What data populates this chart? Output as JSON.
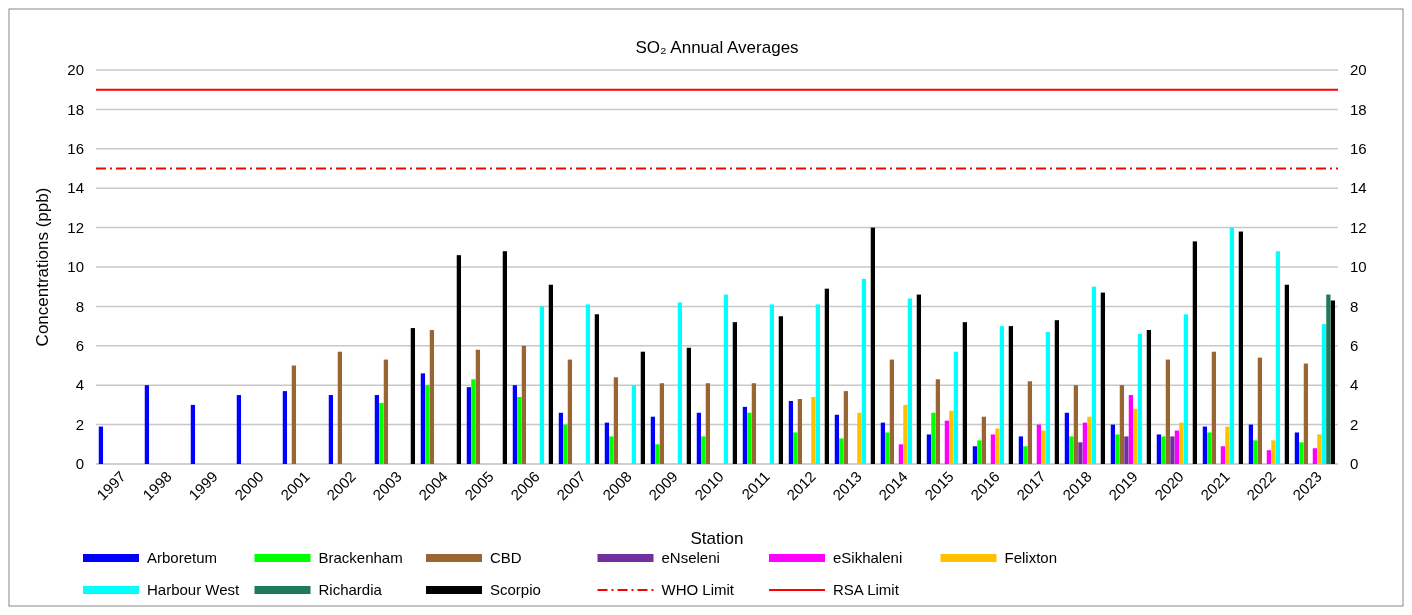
{
  "chart_data": {
    "type": "bar",
    "title": "SO₂ Annual Averages",
    "xlabel": "Station",
    "ylabel": "Concentrations (ppb)",
    "categories": [
      "1997",
      "1998",
      "1999",
      "2000",
      "2001",
      "2002",
      "2003",
      "2004",
      "2005",
      "2006",
      "2007",
      "2008",
      "2009",
      "2010",
      "2011",
      "2012",
      "2013",
      "2014",
      "2015",
      "2016",
      "2017",
      "2018",
      "2019",
      "2020",
      "2021",
      "2022",
      "2023"
    ],
    "series": [
      {
        "name": "Arboretum",
        "color": "#0000ff",
        "values": [
          1.9,
          4.0,
          3.0,
          3.5,
          3.7,
          3.5,
          3.5,
          4.6,
          3.9,
          4.0,
          2.6,
          2.1,
          2.4,
          2.6,
          2.9,
          3.2,
          2.5,
          2.1,
          1.5,
          0.9,
          1.4,
          2.6,
          2.0,
          1.5,
          1.9,
          2.0,
          1.6
        ]
      },
      {
        "name": "Brackenham",
        "color": "#00ff00",
        "values": [
          null,
          null,
          null,
          null,
          null,
          null,
          3.1,
          4.0,
          4.3,
          3.4,
          2.0,
          1.4,
          1.0,
          1.4,
          2.6,
          1.6,
          1.3,
          1.6,
          2.6,
          1.2,
          0.9,
          1.4,
          1.5,
          1.4,
          1.6,
          1.2,
          1.1
        ]
      },
      {
        "name": "CBD",
        "color": "#996633",
        "values": [
          null,
          null,
          null,
          null,
          5.0,
          5.7,
          5.3,
          6.8,
          5.8,
          6.0,
          5.3,
          4.4,
          4.1,
          4.1,
          4.1,
          3.3,
          3.7,
          5.3,
          4.3,
          2.4,
          4.2,
          4.0,
          4.0,
          5.3,
          5.7,
          5.4,
          5.1
        ]
      },
      {
        "name": "eNseleni",
        "color": "#7030a0",
        "values": [
          null,
          null,
          null,
          null,
          null,
          null,
          null,
          null,
          null,
          null,
          null,
          null,
          null,
          null,
          null,
          null,
          null,
          null,
          null,
          null,
          null,
          1.1,
          1.4,
          1.4,
          null,
          null,
          null
        ]
      },
      {
        "name": "eSikhaleni",
        "color": "#ff00ff",
        "values": [
          null,
          null,
          null,
          null,
          null,
          null,
          null,
          null,
          null,
          null,
          null,
          null,
          null,
          null,
          null,
          null,
          null,
          1.0,
          2.2,
          1.5,
          2.0,
          2.1,
          3.5,
          1.7,
          0.9,
          0.7,
          0.8
        ]
      },
      {
        "name": "Felixton",
        "color": "#ffc000",
        "values": [
          null,
          null,
          null,
          null,
          null,
          null,
          null,
          null,
          null,
          null,
          null,
          null,
          null,
          null,
          null,
          3.4,
          2.6,
          3.0,
          2.7,
          1.8,
          1.7,
          2.4,
          2.8,
          2.1,
          1.9,
          1.2,
          1.5
        ]
      },
      {
        "name": "Harbour West",
        "color": "#00ffff",
        "values": [
          null,
          null,
          null,
          null,
          null,
          null,
          null,
          null,
          null,
          8.0,
          8.1,
          4.0,
          8.2,
          8.6,
          8.1,
          8.1,
          9.4,
          8.4,
          5.7,
          7.0,
          6.7,
          9.0,
          6.6,
          7.6,
          12.0,
          10.8,
          7.1
        ]
      },
      {
        "name": "Richardia",
        "color": "#1f7a5a",
        "values": [
          null,
          null,
          null,
          null,
          null,
          null,
          null,
          null,
          null,
          null,
          null,
          null,
          null,
          null,
          null,
          null,
          null,
          null,
          null,
          null,
          null,
          null,
          null,
          null,
          null,
          null,
          8.6
        ]
      },
      {
        "name": "Scorpio",
        "color": "#000000",
        "values": [
          null,
          null,
          null,
          null,
          null,
          null,
          6.9,
          10.6,
          10.8,
          9.1,
          7.6,
          5.7,
          5.9,
          7.2,
          7.5,
          8.9,
          12.0,
          8.6,
          7.2,
          7.0,
          7.3,
          8.7,
          6.8,
          11.3,
          11.8,
          9.1,
          8.3
        ]
      }
    ],
    "ylim": [
      0,
      20
    ],
    "yticks": [
      0,
      2,
      4,
      6,
      8,
      10,
      12,
      14,
      16,
      18,
      20
    ],
    "y2lim": [
      0,
      20
    ],
    "y2ticks": [
      0,
      2,
      4,
      6,
      8,
      10,
      12,
      14,
      16,
      18,
      20
    ],
    "ref_lines": [
      {
        "axis": "y",
        "value": 15,
        "label": "WHO Limit",
        "color": "#ff0000",
        "line_style": "dashed"
      },
      {
        "axis": "y",
        "value": 19,
        "label": "RSA Limit",
        "color": "#ff0000",
        "line_style": "solid"
      }
    ],
    "grid": "y",
    "legend": "bottom"
  }
}
